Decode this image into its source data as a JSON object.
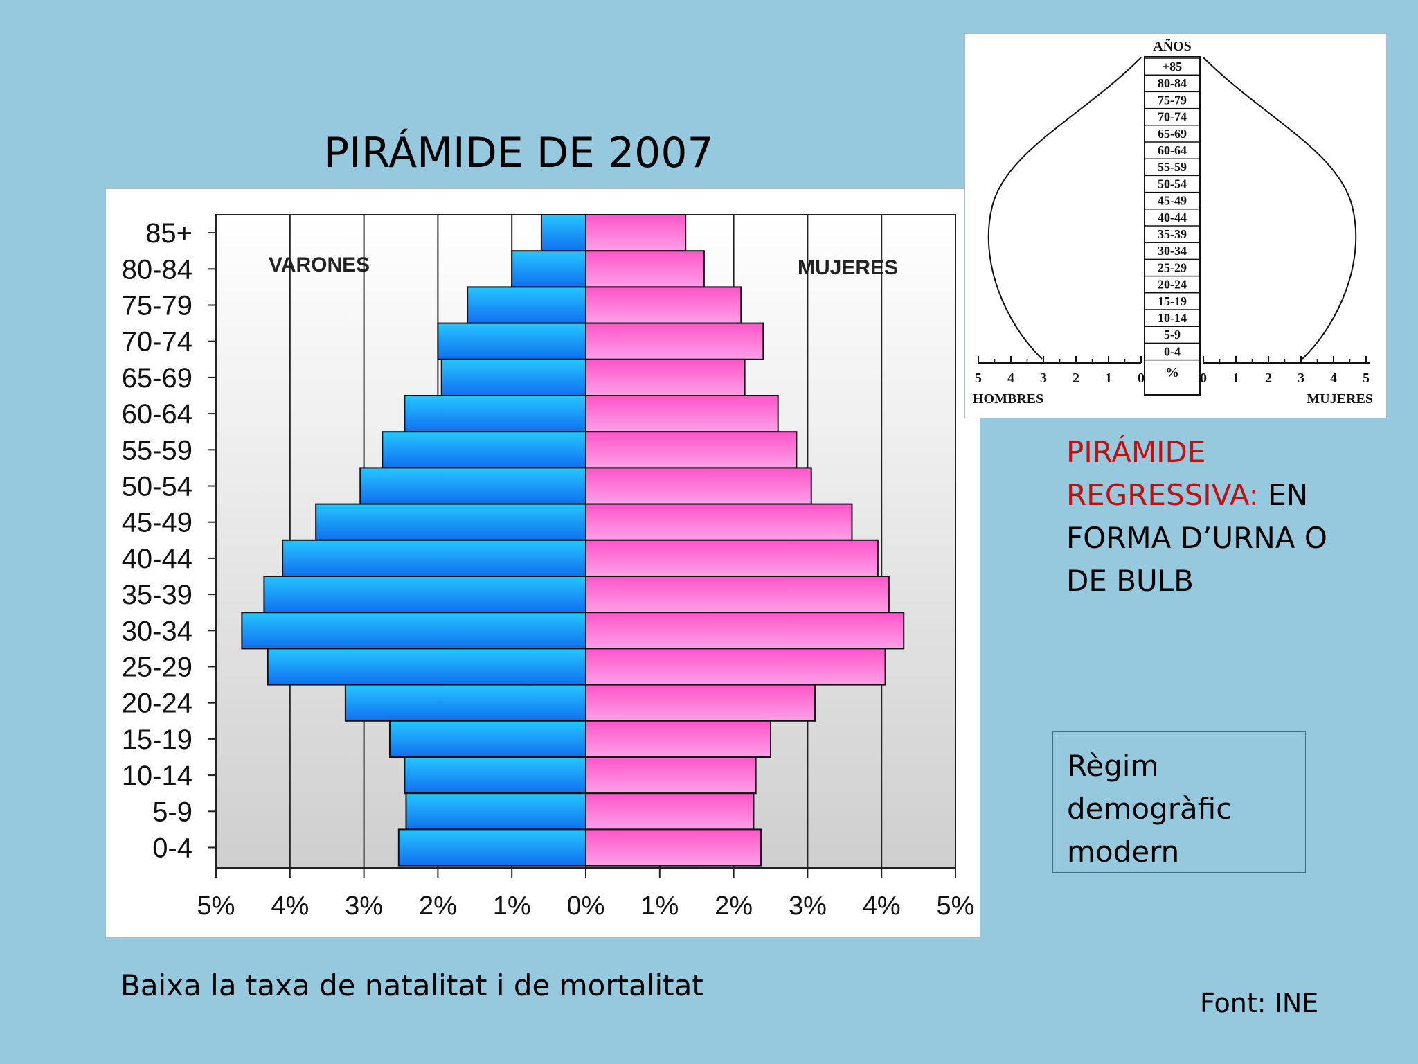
{
  "slide": {
    "title": "PIRÁMIDE DE 2007",
    "description_highlight": "PIRÁMIDE REGRESSIVA:",
    "description_rest": "EN FORMA D’URNA O DE BULB",
    "regime_lines": [
      "Règim",
      "demogràfic",
      "modern"
    ],
    "bottom_text": "Baixa la taxa de natalitat i de mortalitat",
    "source": "Font: INE"
  },
  "colors": {
    "background": "#96c9de",
    "male_bar": "#1fa3f4",
    "female_bar": "#ff66cc"
  },
  "chart_data": [
    {
      "type": "bar",
      "orientation": "horizontal",
      "title": "",
      "categories": [
        "85+",
        "80-84",
        "75-79",
        "70-74",
        "65-69",
        "60-64",
        "55-59",
        "50-54",
        "45-49",
        "40-44",
        "35-39",
        "30-34",
        "25-29",
        "20-24",
        "15-19",
        "10-14",
        "5-9",
        "0-4"
      ],
      "series": [
        {
          "name": "VARONES",
          "side": "left",
          "values": [
            0.6,
            1.0,
            1.6,
            2.0,
            1.95,
            2.45,
            2.75,
            3.05,
            3.65,
            4.1,
            4.35,
            4.65,
            4.3,
            3.25,
            2.65,
            2.45,
            2.43,
            2.53
          ]
        },
        {
          "name": "MUJERES",
          "side": "right",
          "values": [
            1.35,
            1.6,
            2.1,
            2.4,
            2.15,
            2.6,
            2.85,
            3.05,
            3.6,
            3.95,
            4.1,
            4.3,
            4.05,
            3.1,
            2.5,
            2.3,
            2.27,
            2.37
          ]
        }
      ],
      "xlim": [
        -5,
        5
      ],
      "x_tick_labels": [
        "5%",
        "4%",
        "3%",
        "2%",
        "1%",
        "0%",
        "1%",
        "2%",
        "3%",
        "4%",
        "5%"
      ],
      "grid": true
    },
    {
      "type": "area",
      "subtype": "schematic age pyramid",
      "title": "AÑOS",
      "age_labels": [
        "+85",
        "80-84",
        "75-79",
        "70-74",
        "65-69",
        "60-64",
        "55-59",
        "50-54",
        "45-49",
        "40-44",
        "35-39",
        "30-34",
        "25-29",
        "20-24",
        "15-19",
        "10-14",
        "5-9",
        "0-4"
      ],
      "x_tick_labels": [
        "5",
        "4",
        "3",
        "2",
        "1",
        "0",
        "%",
        "0",
        "1",
        "2",
        "3",
        "4",
        "5"
      ],
      "left_label": "HOMBRES",
      "right_label": "MUJERES"
    }
  ]
}
